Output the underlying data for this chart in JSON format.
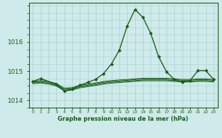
{
  "bg_color": "#ceeaea",
  "line_color": "#1a5c1a",
  "grid_color": "#a8d0d0",
  "xlabel": "Graphe pression niveau de la mer (hPa)",
  "hours": [
    0,
    1,
    2,
    3,
    4,
    5,
    6,
    7,
    8,
    9,
    10,
    11,
    12,
    13,
    14,
    15,
    16,
    17,
    18,
    19,
    20,
    21,
    22,
    23
  ],
  "main_series": [
    1014.65,
    1014.75,
    null,
    1014.55,
    1014.32,
    1014.38,
    1014.52,
    1014.62,
    1014.72,
    1014.92,
    1015.25,
    1015.72,
    1016.55,
    1017.12,
    1016.85,
    1016.3,
    1015.5,
    1014.98,
    1014.72,
    1014.62,
    1014.68,
    1015.02,
    1015.02,
    1014.72
  ],
  "flat_series": [
    [
      1014.65,
      1014.68,
      1014.65,
      1014.58,
      1014.42,
      1014.44,
      1014.52,
      1014.56,
      1014.6,
      1014.65,
      1014.68,
      1014.7,
      1014.72,
      1014.74,
      1014.76,
      1014.76,
      1014.76,
      1014.76,
      1014.74,
      1014.72,
      1014.72,
      1014.74,
      1014.74,
      1014.72
    ],
    [
      1014.63,
      1014.65,
      1014.62,
      1014.55,
      1014.39,
      1014.41,
      1014.49,
      1014.53,
      1014.57,
      1014.62,
      1014.65,
      1014.67,
      1014.69,
      1014.71,
      1014.73,
      1014.73,
      1014.73,
      1014.73,
      1014.71,
      1014.69,
      1014.69,
      1014.71,
      1014.71,
      1014.69
    ],
    [
      1014.6,
      1014.62,
      1014.59,
      1014.52,
      1014.36,
      1014.38,
      1014.46,
      1014.5,
      1014.54,
      1014.59,
      1014.62,
      1014.64,
      1014.66,
      1014.68,
      1014.7,
      1014.7,
      1014.7,
      1014.7,
      1014.68,
      1014.66,
      1014.66,
      1014.68,
      1014.68,
      1014.66
    ],
    [
      1014.57,
      1014.59,
      1014.56,
      1014.49,
      1014.33,
      1014.35,
      1014.43,
      1014.47,
      1014.51,
      1014.56,
      1014.59,
      1014.61,
      1014.63,
      1014.65,
      1014.67,
      1014.67,
      1014.67,
      1014.67,
      1014.65,
      1014.63,
      1014.63,
      1014.65,
      1014.65,
      1014.63
    ]
  ],
  "ylim": [
    1013.75,
    1017.35
  ],
  "yticks": [
    1014,
    1015,
    1016
  ],
  "xlim": [
    -0.5,
    23.5
  ],
  "xticks": [
    0,
    1,
    2,
    3,
    4,
    5,
    6,
    7,
    8,
    9,
    10,
    11,
    12,
    13,
    14,
    15,
    16,
    17,
    18,
    19,
    20,
    21,
    22,
    23
  ]
}
